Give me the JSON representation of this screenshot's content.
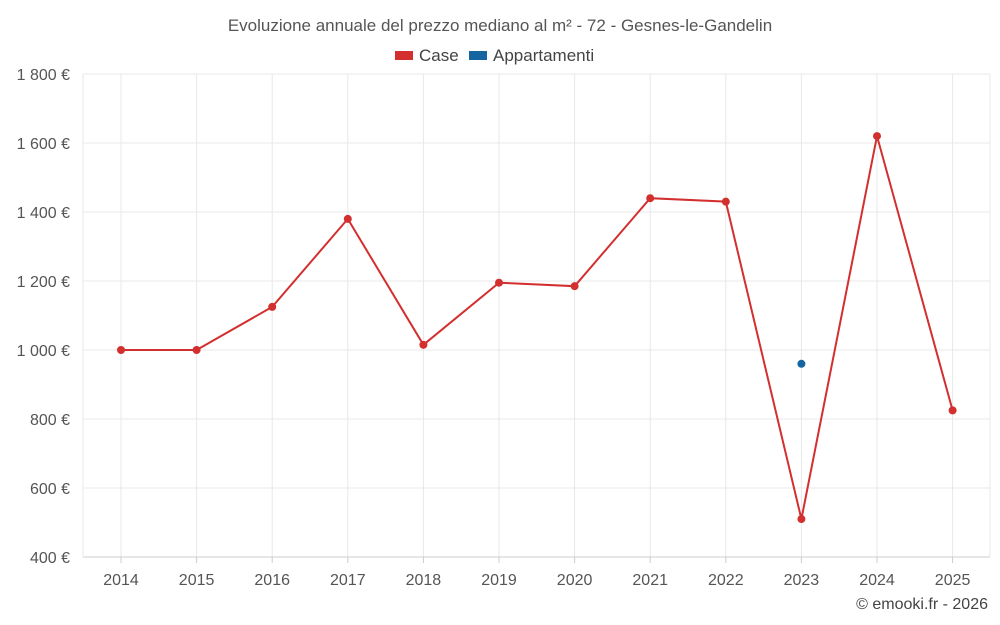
{
  "chart_data": {
    "type": "line",
    "title": "Evoluzione annuale del prezzo mediano al m² - 72 - Gesnes-le-Gandelin",
    "categories": [
      "2014",
      "2015",
      "2016",
      "2017",
      "2018",
      "2019",
      "2020",
      "2021",
      "2022",
      "2023",
      "2024",
      "2025"
    ],
    "series": [
      {
        "name": "Case",
        "color": "#d32f2f",
        "values": [
          1000,
          1000,
          1125,
          1380,
          1015,
          1195,
          1185,
          1440,
          1430,
          510,
          1620,
          825
        ]
      },
      {
        "name": "Appartamenti",
        "color": "#1565a0",
        "values": [
          null,
          null,
          null,
          null,
          null,
          null,
          null,
          null,
          null,
          960,
          null,
          null
        ]
      }
    ],
    "ylim": [
      400,
      1800
    ],
    "yticks": [
      400,
      600,
      800,
      1000,
      1200,
      1400,
      1600,
      1800
    ],
    "ytick_labels": [
      "400 €",
      "600 €",
      "800 €",
      "1 000 €",
      "1 200 €",
      "1 400 €",
      "1 600 €",
      "1 800 €"
    ],
    "xlabel": "",
    "ylabel": "",
    "legend": "top-center",
    "grid": true
  },
  "credit": "© emooki.fr - 2026"
}
